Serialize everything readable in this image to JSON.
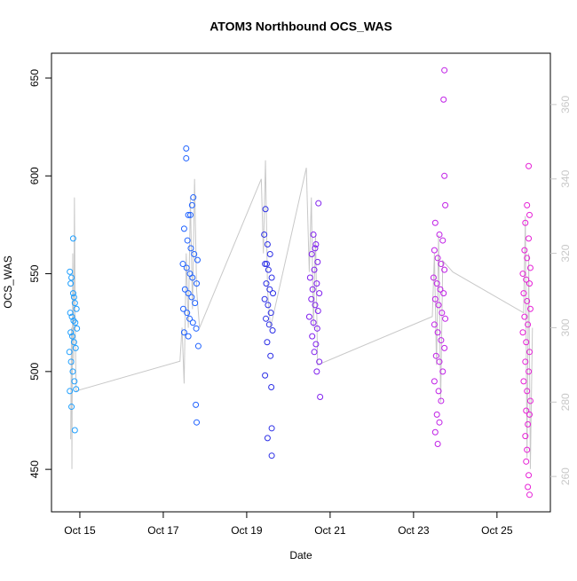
{
  "chart_data": {
    "type": "scatter",
    "title": "ATOM3 Northbound OCS_WAS",
    "x_label": "Date",
    "y_label": "OCS_WAS",
    "xlim": [
      14.32,
      26.28
    ],
    "xticks": [
      {
        "value": 15,
        "label": "Oct 15"
      },
      {
        "value": 17,
        "label": "Oct 17"
      },
      {
        "value": 19,
        "label": "Oct 19"
      },
      {
        "value": 21,
        "label": "Oct 21"
      },
      {
        "value": 23,
        "label": "Oct 23"
      },
      {
        "value": 25,
        "label": "Oct 25"
      }
    ],
    "ylim": [
      428.3,
      662.7
    ],
    "yticks": [
      450,
      500,
      550,
      600,
      650
    ],
    "y2lim": [
      250.5,
      373.8
    ],
    "y2ticks": [
      260,
      280,
      300,
      320,
      340,
      360
    ],
    "y2color": "#c8c8c8",
    "series": [
      {
        "color": "#1e9fff",
        "x": [
          14.76,
          14.8,
          14.84,
          14.88,
          14.92,
          14.77,
          14.81,
          14.85,
          14.89,
          14.93,
          14.78,
          14.82,
          14.86,
          14.9,
          14.75,
          14.79,
          14.83,
          14.87,
          14.91,
          14.76,
          14.8,
          14.88,
          14.84,
          14.78,
          14.86
        ],
        "values": [
          551,
          548,
          540,
          535,
          532,
          530,
          528,
          526,
          525,
          522,
          520,
          518,
          515,
          512,
          510,
          505,
          500,
          495,
          491,
          490,
          482,
          470,
          568,
          545,
          538
        ]
      },
      {
        "color": "#1f62ff",
        "x": [
          17.55,
          17.55,
          17.72,
          17.6,
          17.65,
          17.5,
          17.58,
          17.66,
          17.74,
          17.82,
          17.47,
          17.56,
          17.64,
          17.7,
          17.8,
          17.52,
          17.6,
          17.68,
          17.76,
          17.48,
          17.57,
          17.63,
          17.71,
          17.79,
          17.5,
          17.6,
          17.84,
          17.78,
          17.8,
          17.69
        ],
        "values": [
          614,
          609,
          589,
          580,
          580,
          573,
          567,
          563,
          560,
          557,
          555,
          553,
          550,
          548,
          545,
          542,
          540,
          538,
          535,
          532,
          530,
          527,
          525,
          522,
          520,
          518,
          513,
          483,
          474,
          585
        ]
      },
      {
        "color": "#2b2ee6",
        "x": [
          19.45,
          19.42,
          19.5,
          19.56,
          19.44,
          19.52,
          19.6,
          19.47,
          19.55,
          19.63,
          19.43,
          19.51,
          19.58,
          19.46,
          19.54,
          19.62,
          19.49,
          19.57,
          19.44,
          19.59,
          19.6,
          19.5,
          19.6,
          19.48
        ],
        "values": [
          583,
          570,
          565,
          560,
          555,
          552,
          548,
          545,
          542,
          540,
          537,
          534,
          530,
          527,
          524,
          521,
          515,
          508,
          498,
          492,
          471,
          466,
          457,
          555
        ]
      },
      {
        "color": "#8020ee",
        "x": [
          20.72,
          20.6,
          20.66,
          20.56,
          20.7,
          20.62,
          20.52,
          20.68,
          20.58,
          20.74,
          20.55,
          20.64,
          20.71,
          20.5,
          20.6,
          20.69,
          20.57,
          20.66,
          20.62,
          20.74,
          20.68,
          20.76,
          20.64
        ],
        "values": [
          586,
          570,
          565,
          560,
          556,
          552,
          548,
          545,
          542,
          540,
          537,
          534,
          531,
          528,
          525,
          522,
          518,
          514,
          510,
          505,
          500,
          487,
          563
        ]
      },
      {
        "color": "#c020e6",
        "x": [
          23.74,
          23.72,
          23.74,
          23.76,
          23.52,
          23.62,
          23.7,
          23.5,
          23.58,
          23.66,
          23.74,
          23.48,
          23.56,
          23.64,
          23.72,
          23.52,
          23.6,
          23.68,
          23.76,
          23.5,
          23.58,
          23.66,
          23.74,
          23.54,
          23.62,
          23.7,
          23.5,
          23.6,
          23.66,
          23.56,
          23.62,
          23.52,
          23.58
        ],
        "values": [
          654,
          639,
          600,
          585,
          576,
          570,
          567,
          562,
          558,
          555,
          552,
          548,
          545,
          542,
          540,
          537,
          534,
          530,
          527,
          524,
          520,
          516,
          512,
          508,
          505,
          500,
          495,
          490,
          485,
          478,
          474,
          469,
          463
        ]
      },
      {
        "color": "#e620d6",
        "x": [
          25.76,
          25.72,
          25.78,
          25.68,
          25.76,
          25.66,
          25.72,
          25.8,
          25.62,
          25.7,
          25.78,
          25.64,
          25.72,
          25.8,
          25.66,
          25.74,
          25.62,
          25.7,
          25.78,
          25.68,
          25.76,
          25.64,
          25.72,
          25.8,
          25.7,
          25.78,
          25.74,
          25.68,
          25.72,
          25.7,
          25.76,
          25.74,
          25.78
        ],
        "values": [
          605,
          585,
          580,
          576,
          568,
          562,
          558,
          553,
          550,
          547,
          545,
          540,
          536,
          532,
          528,
          524,
          520,
          515,
          510,
          505,
          500,
          495,
          490,
          485,
          480,
          478,
          473,
          467,
          460,
          454,
          447,
          441,
          437
        ]
      },
      {
        "type": "line",
        "axis": "y2",
        "color": "#c8c8c8",
        "x": [
          14.78,
          14.8,
          14.81,
          14.83,
          14.85,
          14.87,
          14.89,
          14.91,
          17.4,
          17.45,
          17.5,
          17.55,
          17.6,
          17.65,
          17.7,
          17.75,
          17.8,
          17.87,
          19.35,
          19.4,
          19.45,
          19.5,
          19.57,
          20.43,
          20.5,
          20.55,
          20.6,
          20.65,
          20.7,
          23.45,
          23.5,
          23.55,
          23.6,
          23.65,
          23.7,
          23.94,
          25.64,
          25.68,
          25.72,
          25.76,
          25.8,
          25.85
        ],
        "values": [
          270,
          300,
          262,
          320,
          290,
          335,
          300,
          283,
          291,
          300,
          285,
          320,
          300,
          335,
          305,
          340,
          310,
          300,
          340,
          320,
          345,
          310,
          300,
          343,
          315,
          335,
          300,
          325,
          290,
          303,
          320,
          290,
          325,
          280,
          318,
          315,
          304,
          330,
          265,
          320,
          262,
          300
        ]
      }
    ]
  }
}
